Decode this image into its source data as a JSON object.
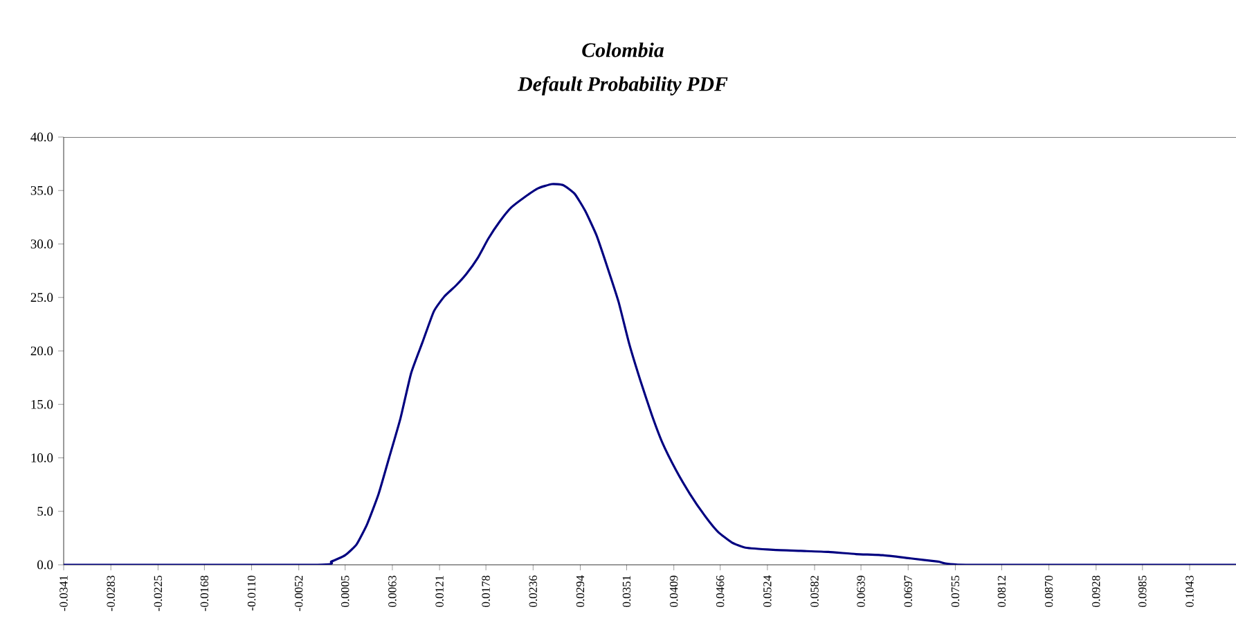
{
  "chart_data": {
    "type": "line",
    "title": "Colombia",
    "subtitle": "Default Probability PDF",
    "x": [
      -0.0341,
      -0.0029,
      -0.0012,
      0.0005,
      0.0019,
      0.0032,
      0.0046,
      0.0059,
      0.0073,
      0.0086,
      0.01,
      0.0114,
      0.0127,
      0.0141,
      0.0154,
      0.0168,
      0.0181,
      0.0195,
      0.0209,
      0.0226,
      0.0242,
      0.0259,
      0.0273,
      0.0287,
      0.03,
      0.0314,
      0.0327,
      0.0341,
      0.0354,
      0.0368,
      0.0382,
      0.0395,
      0.0412,
      0.0429,
      0.0446,
      0.0463,
      0.048,
      0.0497,
      0.0531,
      0.0565,
      0.0599,
      0.0633,
      0.0666,
      0.07,
      0.0734,
      0.0768,
      0.11
    ],
    "series": [
      {
        "color": "#000080",
        "values": [
          0,
          0,
          0.3,
          0.9,
          1.9,
          3.8,
          6.6,
          10.0,
          13.7,
          17.9,
          20.8,
          23.7,
          25.1,
          26.1,
          27.2,
          28.7,
          30.5,
          32.1,
          33.4,
          34.4,
          35.2,
          35.6,
          35.5,
          34.7,
          33.1,
          30.8,
          27.9,
          24.6,
          20.7,
          17.2,
          14.0,
          11.4,
          8.8,
          6.6,
          4.7,
          3.1,
          2.1,
          1.6,
          1.4,
          1.3,
          1.2,
          1.0,
          0.9,
          0.6,
          0.3,
          0,
          0
        ]
      }
    ],
    "xlim": [
      -0.0341,
      0.11
    ],
    "xticks": [
      {
        "value": -0.0341,
        "label": "-0.0341"
      },
      {
        "value": -0.0283,
        "label": "-0.0283"
      },
      {
        "value": -0.0225,
        "label": "-0.0225"
      },
      {
        "value": -0.0168,
        "label": "-0.0168"
      },
      {
        "value": -0.011,
        "label": "-0.0110"
      },
      {
        "value": -0.0052,
        "label": "-0.0052"
      },
      {
        "value": 0.0005,
        "label": "0.0005"
      },
      {
        "value": 0.0063,
        "label": "0.0063"
      },
      {
        "value": 0.0121,
        "label": "0.0121"
      },
      {
        "value": 0.0178,
        "label": "0.0178"
      },
      {
        "value": 0.0236,
        "label": "0.0236"
      },
      {
        "value": 0.0294,
        "label": "0.0294"
      },
      {
        "value": 0.0351,
        "label": "0.0351"
      },
      {
        "value": 0.0409,
        "label": "0.0409"
      },
      {
        "value": 0.0466,
        "label": "0.0466"
      },
      {
        "value": 0.0524,
        "label": "0.0524"
      },
      {
        "value": 0.0582,
        "label": "0.0582"
      },
      {
        "value": 0.0639,
        "label": "0.0639"
      },
      {
        "value": 0.0697,
        "label": "0.0697"
      },
      {
        "value": 0.0755,
        "label": "0.0755"
      },
      {
        "value": 0.0812,
        "label": "0.0812"
      },
      {
        "value": 0.087,
        "label": "0.0870"
      },
      {
        "value": 0.0928,
        "label": "0.0928"
      },
      {
        "value": 0.0985,
        "label": "0.0985"
      },
      {
        "value": 0.1043,
        "label": "0.1043"
      }
    ],
    "ylim": [
      0,
      40
    ],
    "yticks": [
      {
        "value": 0,
        "label": "0.0"
      },
      {
        "value": 5,
        "label": "5.0"
      },
      {
        "value": 10,
        "label": "10.0"
      },
      {
        "value": 15,
        "label": "15.0"
      },
      {
        "value": 20,
        "label": "20.0"
      },
      {
        "value": 25,
        "label": "25.0"
      },
      {
        "value": 30,
        "label": "30.0"
      },
      {
        "value": 35,
        "label": "35.0"
      },
      {
        "value": 40,
        "label": "40.0"
      }
    ],
    "marker": "none",
    "line_style": "solid"
  }
}
